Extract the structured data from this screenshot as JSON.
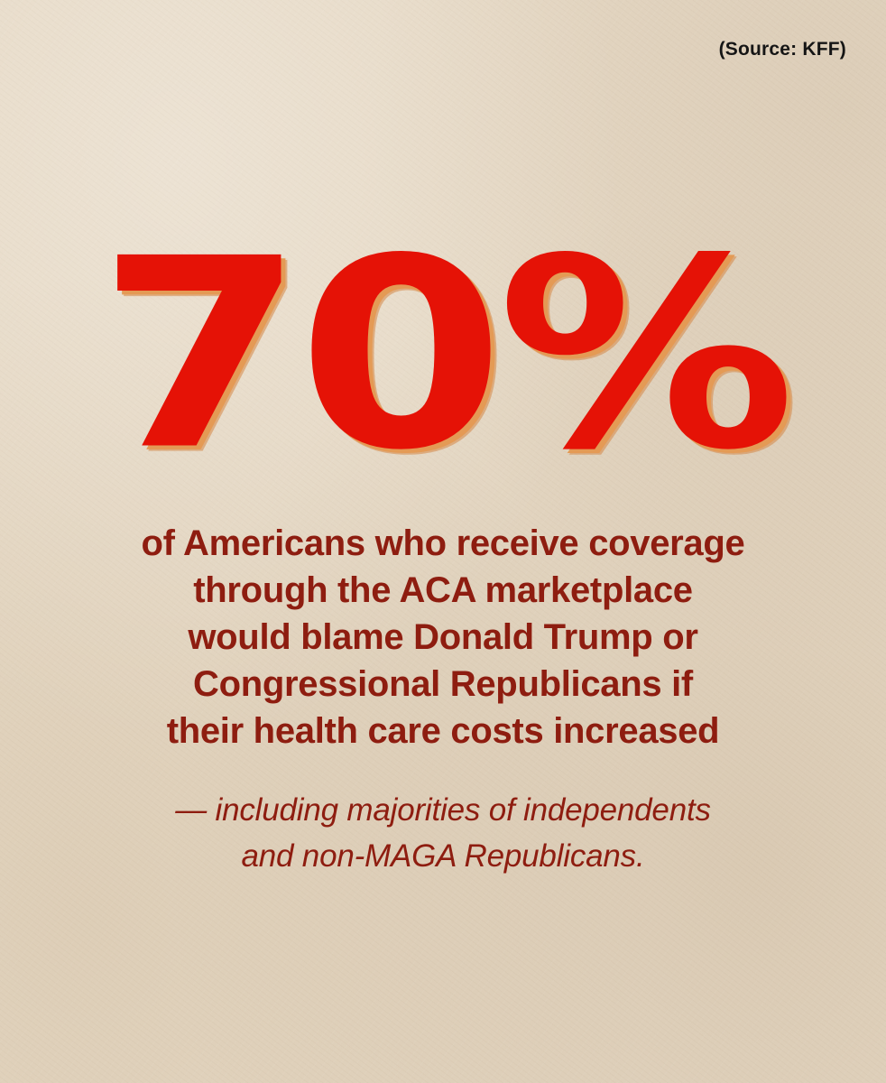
{
  "source": "(Source: KFF)",
  "stat": "70%",
  "statement_lines": [
    "of Americans who receive coverage",
    "through the ACA marketplace",
    "would blame Donald Trump or",
    "Congressional Republicans if",
    "their health care costs increased"
  ],
  "note_lines": [
    "— including majorities of independents",
    "and non-MAGA Republicans."
  ],
  "colors": {
    "background": "#e6d9c5",
    "stat": "#e51206",
    "stat_shadow": "#e49a55",
    "body_text": "#8e1d10",
    "source_text": "#151515"
  }
}
